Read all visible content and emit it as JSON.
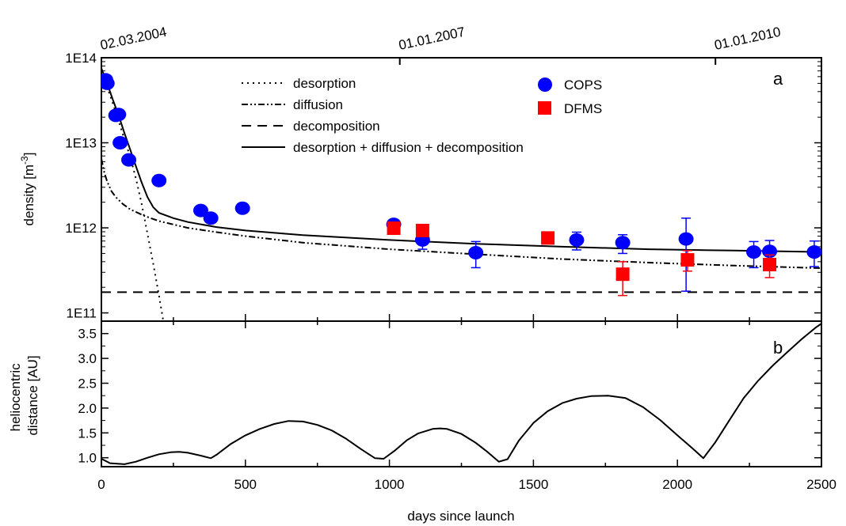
{
  "chart_data": [
    {
      "panel": "a",
      "type": "scatter",
      "ylabel": "density [m⁻³]",
      "ylabel_main": "density [m",
      "ylabel_sup": "-3",
      "ylabel_end": "]",
      "xlim": [
        0,
        2500
      ],
      "ylim": [
        80000000000.0,
        100000000000000.0
      ],
      "yscale": "log",
      "ytick_values": [
        100000000000.0,
        1000000000000.0,
        10000000000000.0,
        100000000000000.0
      ],
      "ytick_labels": [
        "1E11",
        "1E12",
        "1E13",
        "1E14"
      ],
      "top_axis_dates": [
        {
          "label": "02.03.2004",
          "day": 0
        },
        {
          "label": "01.01.2007",
          "day": 1036
        },
        {
          "label": "01.01.2010",
          "day": 2132
        }
      ],
      "series": [
        {
          "name": "COPS",
          "marker": "circle",
          "color": "#0000ff",
          "points": [
            {
              "x": 15,
              "y": 55000000000000.0
            },
            {
              "x": 20,
              "y": 50000000000000.0
            },
            {
              "x": 50,
              "y": 21000000000000.0
            },
            {
              "x": 60,
              "y": 21500000000000.0
            },
            {
              "x": 65,
              "y": 10000000000000.0
            },
            {
              "x": 95,
              "y": 6300000000000.0
            },
            {
              "x": 200,
              "y": 3600000000000.0
            },
            {
              "x": 345,
              "y": 1600000000000.0
            },
            {
              "x": 380,
              "y": 1300000000000.0
            },
            {
              "x": 490,
              "y": 1700000000000.0
            },
            {
              "x": 1015,
              "y": 1100000000000.0,
              "err": [
                1000000000000.0,
                1200000000000.0
              ]
            },
            {
              "x": 1115,
              "y": 720000000000.0,
              "err": [
                560000000000.0,
                920000000000.0
              ]
            },
            {
              "x": 1300,
              "y": 510000000000.0,
              "err": [
                340000000000.0,
                690000000000.0
              ]
            },
            {
              "x": 1650,
              "y": 720000000000.0,
              "err": [
                550000000000.0,
                890000000000.0
              ]
            },
            {
              "x": 1810,
              "y": 670000000000.0,
              "err": [
                500000000000.0,
                830000000000.0
              ]
            },
            {
              "x": 2030,
              "y": 740000000000.0,
              "err": [
                180000000000.0,
                1300000000000.0
              ]
            },
            {
              "x": 2265,
              "y": 520000000000.0,
              "err": [
                340000000000.0,
                690000000000.0
              ]
            },
            {
              "x": 2320,
              "y": 530000000000.0,
              "err": [
                350000000000.0,
                710000000000.0
              ]
            },
            {
              "x": 2475,
              "y": 520000000000.0,
              "err": [
                350000000000.0,
                700000000000.0
              ]
            }
          ]
        },
        {
          "name": "DFMS",
          "marker": "square",
          "color": "#ff0000",
          "points": [
            {
              "x": 1015,
              "y": 990000000000.0
            },
            {
              "x": 1115,
              "y": 930000000000.0
            },
            {
              "x": 1550,
              "y": 760000000000.0
            },
            {
              "x": 1810,
              "y": 285000000000.0,
              "err": [
                160000000000.0,
                400000000000.0
              ]
            },
            {
              "x": 2035,
              "y": 420000000000.0,
              "err": [
                310000000000.0,
                540000000000.0
              ]
            },
            {
              "x": 2320,
              "y": 370000000000.0,
              "err": [
                260000000000.0,
                480000000000.0
              ]
            }
          ]
        }
      ],
      "lines": [
        {
          "name": "desorption",
          "style": "dotted",
          "x": [
            0,
            20,
            40,
            60,
            80,
            100,
            120,
            140,
            160,
            180,
            200,
            215
          ],
          "y": [
            70000000000000.0,
            45000000000000.0,
            29000000000000.0,
            18000000000000.0,
            11000000000000.0,
            6800000000000.0,
            3800000000000.0,
            1900000000000.0,
            850000000000.0,
            380000000000.0,
            160000000000.0,
            80000000000.0
          ]
        },
        {
          "name": "diffusion",
          "style": "dashdotdot",
          "x": [
            0,
            10,
            20,
            35,
            50,
            75,
            100,
            150,
            200,
            300,
            400,
            500,
            700,
            1000,
            1300,
            1600,
            1900,
            2200,
            2500
          ],
          "y": [
            6500000000000.0,
            4500000000000.0,
            3500000000000.0,
            2700000000000.0,
            2300000000000.0,
            1900000000000.0,
            1650000000000.0,
            1380000000000.0,
            1200000000000.0,
            1000000000000.0,
            890000000000.0,
            800000000000.0,
            670000000000.0,
            560000000000.0,
            490000000000.0,
            430000000000.0,
            390000000000.0,
            360000000000.0,
            335000000000.0
          ]
        },
        {
          "name": "decomposition",
          "style": "dashed",
          "x": [
            0,
            2500
          ],
          "y": [
            175000000000.0,
            175000000000.0
          ]
        },
        {
          "name": "desorption + diffusion + decomposition",
          "style": "solid",
          "x": [
            0,
            20,
            40,
            60,
            80,
            100,
            120,
            140,
            160,
            180,
            200,
            250,
            300,
            400,
            500,
            700,
            1000,
            1300,
            1600,
            1900,
            2200,
            2500
          ],
          "y": [
            75000000000000.0,
            50000000000000.0,
            32000000000000.0,
            21000000000000.0,
            13000000000000.0,
            8300000000000.0,
            5300000000000.0,
            3400000000000.0,
            2300000000000.0,
            1750000000000.0,
            1500000000000.0,
            1300000000000.0,
            1170000000000.0,
            1020000000000.0,
            930000000000.0,
            820000000000.0,
            720000000000.0,
            650000000000.0,
            600000000000.0,
            560000000000.0,
            540000000000.0,
            520000000000.0
          ]
        }
      ],
      "legend": {
        "lines": [
          "desorption",
          "diffusion",
          "decomposition",
          "desorption + diffusion + decomposition"
        ],
        "markers": [
          "COPS",
          "DFMS"
        ]
      }
    },
    {
      "panel": "b",
      "type": "line",
      "ylabel_line1": "heliocentric",
      "ylabel_line2": "distance [AU]",
      "xlabel": "days since launch",
      "xlim": [
        0,
        2500
      ],
      "ylim": [
        0.82,
        3.75
      ],
      "xtick_values": [
        0,
        500,
        1000,
        1500,
        2000,
        2500
      ],
      "xtick_labels": [
        "0",
        "500",
        "1000",
        "1500",
        "2000",
        "2500"
      ],
      "ytick_values": [
        1.0,
        1.5,
        2.0,
        2.5,
        3.0,
        3.5
      ],
      "ytick_labels": [
        "1.0",
        "1.5",
        "2.0",
        "2.5",
        "3.0",
        "3.5"
      ],
      "series": [
        {
          "name": "heliocentric distance",
          "x": [
            0,
            30,
            80,
            120,
            160,
            200,
            240,
            270,
            300,
            340,
            380,
            400,
            450,
            500,
            550,
            600,
            650,
            700,
            750,
            800,
            850,
            900,
            950,
            980,
            1020,
            1060,
            1100,
            1150,
            1175,
            1200,
            1250,
            1300,
            1340,
            1380,
            1410,
            1450,
            1500,
            1550,
            1600,
            1650,
            1700,
            1760,
            1820,
            1880,
            1940,
            2000,
            2050,
            2090,
            2130,
            2180,
            2230,
            2280,
            2330,
            2380,
            2430,
            2480,
            2500
          ],
          "y": [
            0.98,
            0.89,
            0.87,
            0.92,
            1.0,
            1.07,
            1.11,
            1.12,
            1.1,
            1.05,
            0.99,
            1.06,
            1.28,
            1.45,
            1.58,
            1.68,
            1.74,
            1.73,
            1.66,
            1.55,
            1.38,
            1.18,
            0.99,
            0.98,
            1.15,
            1.35,
            1.49,
            1.58,
            1.59,
            1.58,
            1.48,
            1.3,
            1.12,
            0.92,
            0.97,
            1.35,
            1.7,
            1.94,
            2.1,
            2.19,
            2.24,
            2.25,
            2.2,
            2.02,
            1.76,
            1.45,
            1.2,
            0.99,
            1.3,
            1.75,
            2.2,
            2.55,
            2.85,
            3.12,
            3.38,
            3.62,
            3.7
          ]
        }
      ]
    }
  ],
  "panel_labels": {
    "a": "a",
    "b": "b"
  }
}
